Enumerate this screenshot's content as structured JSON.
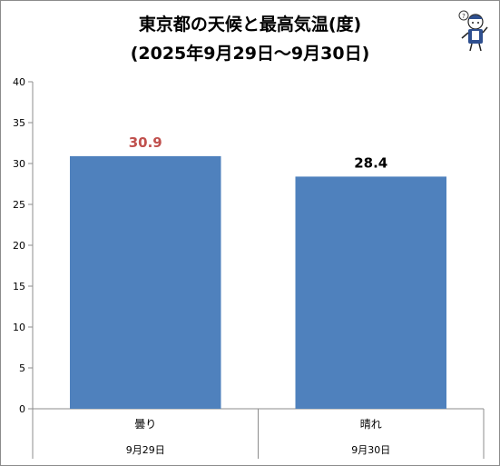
{
  "chart_data": {
    "type": "bar",
    "title": [
      "東京都の天候と最高気温(度)",
      "(2025年9月29日～9月30日)"
    ],
    "categories": [
      "曇り",
      "晴れ"
    ],
    "category_dates": [
      "9月29日",
      "9月30日"
    ],
    "values": [
      30.9,
      28.4
    ],
    "value_labels": [
      "30.9",
      "28.4"
    ],
    "label_colors": [
      "#c0504d",
      "#000000"
    ],
    "yticks": [
      "0",
      "5",
      "10",
      "15",
      "20",
      "25",
      "30",
      "35",
      "40"
    ],
    "ylim": [
      0,
      40
    ],
    "bar_color": "#4f81bd",
    "grid": false,
    "legend": "none",
    "xlabel": "",
    "ylabel": ""
  },
  "mascot_icon": "reporter-mascot-icon"
}
